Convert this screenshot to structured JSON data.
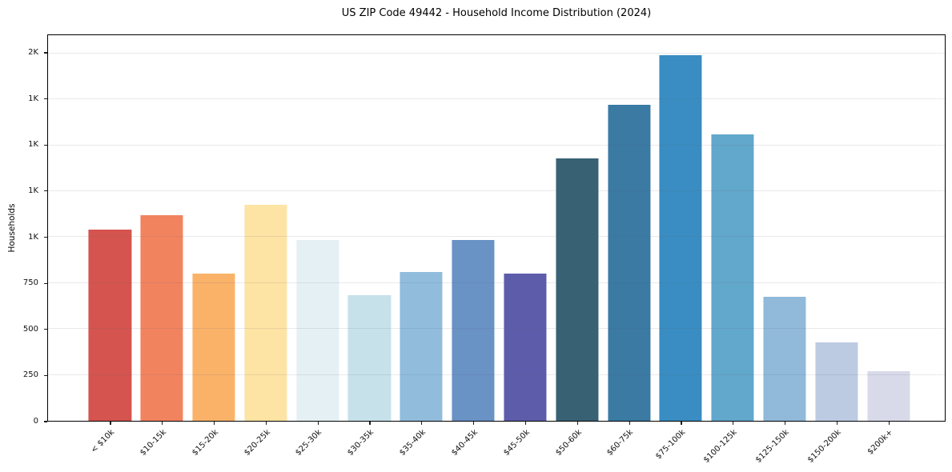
{
  "chart_data": {
    "type": "bar",
    "title": "US ZIP Code 49442 - Household Income Distribution (2024)",
    "xlabel": "",
    "ylabel": "Households",
    "categories": [
      "< $10k",
      "$10-15k",
      "$15-20k",
      "$20-25k",
      "$25-30k",
      "$30-35k",
      "$35-40k",
      "$40-45k",
      "$45-50k",
      "$50-60k",
      "$60-75k",
      "$75-100k",
      "$100-125k",
      "$125-150k",
      "$150-200k",
      "$200k+"
    ],
    "values": [
      1040,
      1120,
      800,
      1175,
      985,
      685,
      810,
      985,
      800,
      1430,
      1720,
      1990,
      1560,
      675,
      425,
      270
    ],
    "bar_colors": [
      "#d5544f",
      "#f2835f",
      "#fab269",
      "#fde3a4",
      "#e5f0f4",
      "#c6e1ea",
      "#91bcdc",
      "#6992c5",
      "#5d5cab",
      "#386174",
      "#3a7aa3",
      "#398dc2",
      "#62a7cc",
      "#90b9da",
      "#bccbe2",
      "#d8dae9"
    ],
    "ylim": [
      0,
      2100
    ],
    "yticks": [
      {
        "value": 0,
        "label": "0"
      },
      {
        "value": 250,
        "label": "250"
      },
      {
        "value": 500,
        "label": "500"
      },
      {
        "value": 750,
        "label": "750"
      },
      {
        "value": 1000,
        "label": "1K"
      },
      {
        "value": 1250,
        "label": "1K"
      },
      {
        "value": 1500,
        "label": "1K"
      },
      {
        "value": 1750,
        "label": "1K"
      },
      {
        "value": 2000,
        "label": "2K"
      }
    ],
    "grid": "horizontal",
    "legend": "none",
    "spines": "full-box"
  }
}
